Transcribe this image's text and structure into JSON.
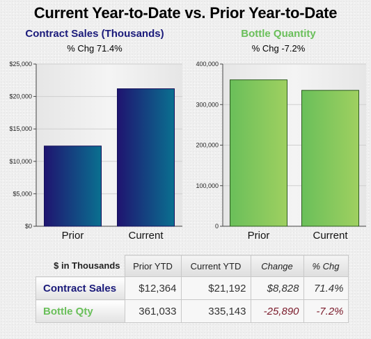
{
  "title": "Current Year-to-Date vs. Prior Year-to-Date",
  "colors": {
    "contract_title": "#1a1a7a",
    "bottle_title": "#6abf5a",
    "bar_navy_start": "#1f1470",
    "bar_navy_end": "#0a7090",
    "bar_green_start": "#6abf5a",
    "bar_green_end": "#9fd060",
    "negative": "#7a1a2a",
    "positive": "#333333"
  },
  "chart_data": [
    {
      "type": "bar",
      "title": "Contract Sales (Thousands)",
      "subtitle": "% Chg 71.4%",
      "categories": [
        "Prior",
        "Current"
      ],
      "values": [
        12364,
        21192
      ],
      "ylim": [
        0,
        25000
      ],
      "yticks": [
        0,
        5000,
        10000,
        15000,
        20000,
        25000
      ],
      "ytick_labels": [
        "$0",
        "$5,000",
        "$10,000",
        "$15,000",
        "$20,000",
        "$25,000"
      ],
      "xlabel": "",
      "ylabel": "",
      "grid": true
    },
    {
      "type": "bar",
      "title": "Bottle Quantity",
      "subtitle": "% Chg -7.2%",
      "categories": [
        "Prior",
        "Current"
      ],
      "values": [
        361033,
        335143
      ],
      "ylim": [
        0,
        400000
      ],
      "yticks": [
        0,
        100000,
        200000,
        300000,
        400000
      ],
      "ytick_labels": [
        "0",
        "100,000",
        "200,000",
        "300,000",
        "400,000"
      ],
      "xlabel": "",
      "ylabel": "",
      "grid": true
    }
  ],
  "table": {
    "corner_label": "$ in Thousands",
    "headers": [
      "Prior YTD",
      "Current YTD",
      "Change",
      "% Chg"
    ],
    "rows": [
      {
        "label": "Contract Sales",
        "values": [
          "$12,364",
          "$21,192",
          "$8,828",
          "71.4%"
        ]
      },
      {
        "label": "Bottle Qty",
        "values": [
          "361,033",
          "335,143",
          "-25,890",
          "-7.2%"
        ]
      }
    ]
  }
}
